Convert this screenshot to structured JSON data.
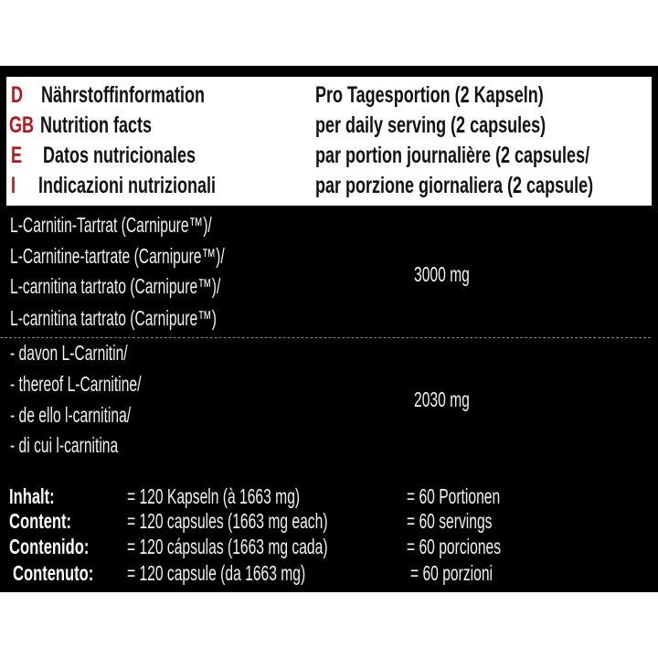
{
  "header": {
    "rows": [
      {
        "lang": "D",
        "title": "Nährstoffinformation",
        "serving": "Pro Tagesportion (2 Kapseln)"
      },
      {
        "lang": "GB",
        "title": "Nutrition facts",
        "serving": "per daily serving  (2 capsules)"
      },
      {
        "lang": "E",
        "title": "Datos nutricionales",
        "serving": "par portion  journalière  (2 capsules/"
      },
      {
        "lang": "I",
        "title": "Indicazioni nutrizionali",
        "serving": "par porzione giornaliera (2 capsule)"
      }
    ],
    "lang_color": "#c0121b"
  },
  "ingredients": [
    {
      "names": [
        "L-Carnitin-Tartrat (Carnipure™)/",
        "L-Carnitine-tartrate (Carnipure™)/",
        "L-carnitina tartrato (Carnipure™)/",
        "L-carnitina tartrato (Carnipure™)"
      ],
      "amount": "3000 mg"
    },
    {
      "names": [
        " - davon L-Carnitin/",
        " - thereof L-Carnitine/",
        " - de ello l-carnitina/",
        " - di cui l-carnitina"
      ],
      "amount": "2030 mg"
    }
  ],
  "contents": [
    {
      "label": "Inhalt:",
      "capsules": "= 120 Kapseln (à 1663 mg)",
      "servings": "= 60 Portionen"
    },
    {
      "label": "Content:",
      "capsules": "= 120 capsules (1663 mg each)",
      "servings": "= 60 servings"
    },
    {
      "label": "Contenido:",
      "capsules": "= 120 cápsulas (1663 mg cada)",
      "servings": "= 60 porciones"
    },
    {
      "label": "Contenuto:",
      "capsules": "= 120  capsule (da 1663 mg)",
      "servings": "= 60 porzioni"
    }
  ]
}
